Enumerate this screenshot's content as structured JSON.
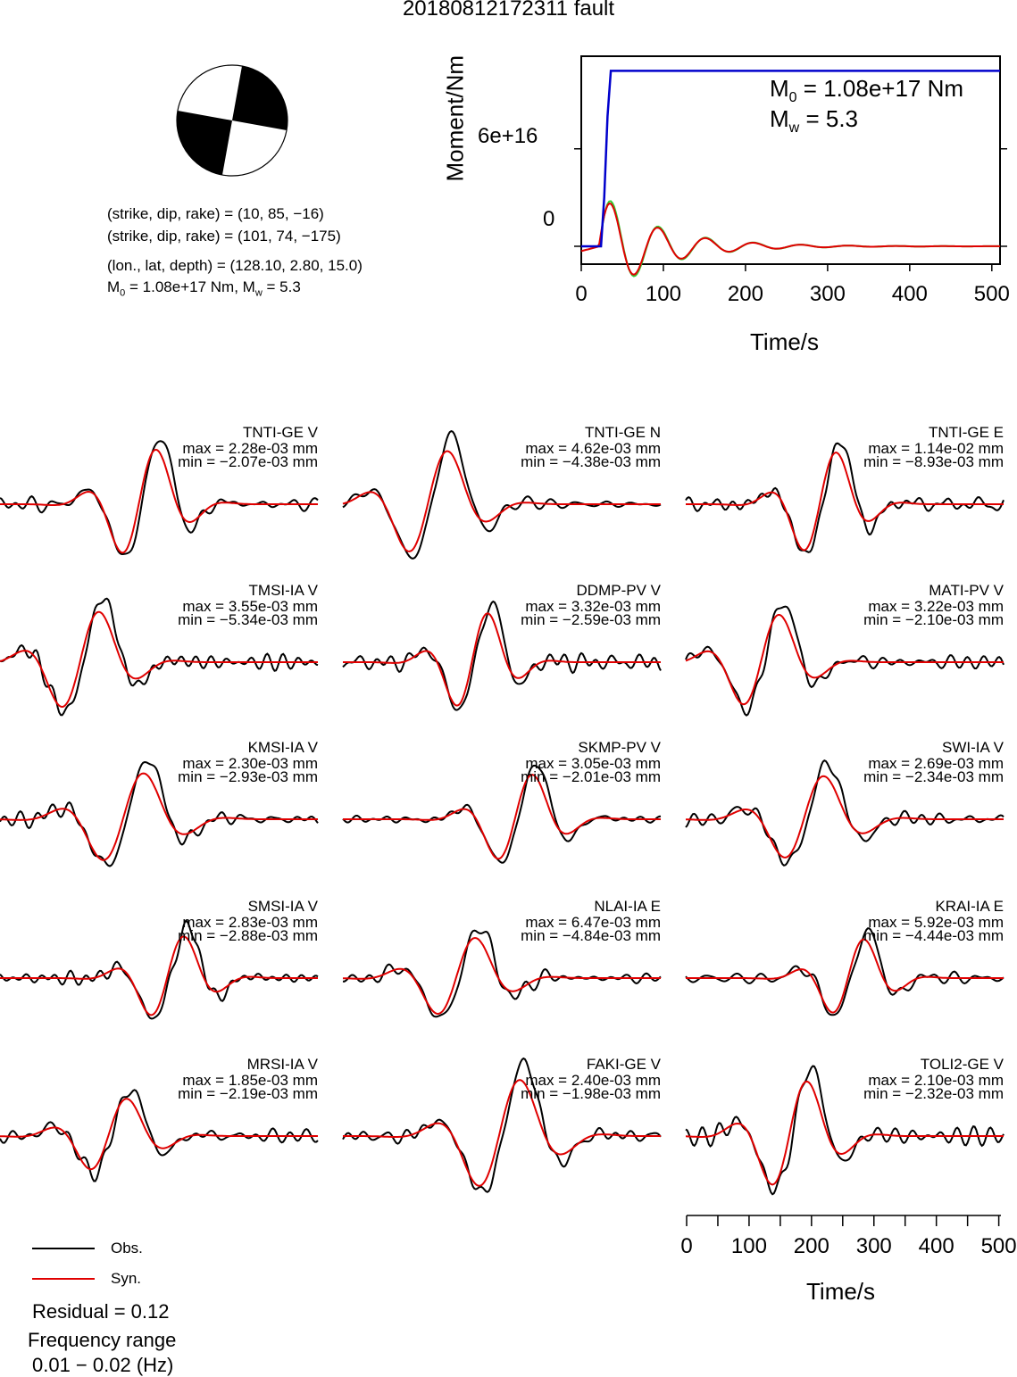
{
  "title": "20180812172311 fault",
  "params": {
    "plane1": "(strike, dip, rake) = (10, 85, −16)",
    "plane2": "(strike, dip, rake) = (101, 74, −175)",
    "location": "(lon., lat, depth) = (128.10, 2.80, 15.0)",
    "moment_prefix": "M",
    "moment_sub": "0",
    "moment_mid": " = 1.08e+17 Nm, M",
    "mw_sub": "w",
    "mw_suffix": " = 5.3"
  },
  "moment_plot": {
    "ylabel": "Moment/Nm",
    "xlabel": "Time/s",
    "m0_prefix": "M",
    "m0_sub": "0",
    "m0_value": " = 1.08e+17 Nm",
    "mw_prefix": "M",
    "mw_sub": "w",
    "mw_value": " = 5.3",
    "ytick_labels": [
      "6e+16",
      "0"
    ],
    "xtick_labels": [
      "0",
      "100",
      "200",
      "300",
      "400",
      "500"
    ]
  },
  "traces_time_axis": {
    "xlabel": "Time/s",
    "xtick_labels": [
      "0",
      "100",
      "200",
      "300",
      "400",
      "500"
    ]
  },
  "legend": {
    "obs_label": "Obs.",
    "syn_label": "Syn.",
    "obs_color": "#000000",
    "syn_color": "#e00000"
  },
  "residual": "Residual = 0.12",
  "freq_label": "Frequency range",
  "freq_value": "0.01 − 0.02 (Hz)",
  "colors": {
    "moment_function": "#0000cc",
    "obs": "#000000",
    "syn": "#e00000",
    "moment_rate_green": "#33cc33"
  },
  "chart_data": {
    "type": "line",
    "title": "20180812172311 fault",
    "moment_function": {
      "xlabel": "Time/s",
      "ylabel": "Moment/Nm",
      "xlim": [
        0,
        510
      ],
      "ylim": [
        -1.1e+16,
        1.17e+17
      ],
      "series": [
        {
          "x": [
            0,
            24,
            28,
            32,
            36,
            510
          ],
          "y": [
            0,
            0,
            3e+16,
            8e+16,
            1.08e+17,
            1.08e+17
          ]
        }
      ],
      "scalar_moment_Nm": 1.08e+17,
      "Mw": 5.3
    },
    "stations": [
      {
        "name": "TNTI-GE V",
        "max": "max = 2.28e-03 mm",
        "min": "min = −2.07e-03 mm"
      },
      {
        "name": "TNTI-GE N",
        "max": "max = 4.62e-03 mm",
        "min": "min = −4.38e-03 mm"
      },
      {
        "name": "TNTI-GE E",
        "max": "max = 1.14e-02 mm",
        "min": "min = −8.93e-03 mm"
      },
      {
        "name": "TMSI-IA V",
        "max": "max = 3.55e-03 mm",
        "min": "min = −5.34e-03 mm"
      },
      {
        "name": "DDMP-PV V",
        "max": "max = 3.32e-03 mm",
        "min": "min = −2.59e-03 mm"
      },
      {
        "name": "MATI-PV V",
        "max": "max = 3.22e-03 mm",
        "min": "min = −2.10e-03 mm"
      },
      {
        "name": "KMSI-IA V",
        "max": "max = 2.30e-03 mm",
        "min": "min = −2.93e-03 mm"
      },
      {
        "name": "SKMP-PV V",
        "max": "max = 3.05e-03 mm",
        "min": "min = −2.01e-03 mm"
      },
      {
        "name": "SWI-IA V",
        "max": "max = 2.69e-03 mm",
        "min": "min = −2.34e-03 mm"
      },
      {
        "name": "SMSI-IA V",
        "max": "max = 2.83e-03 mm",
        "min": "min = −2.88e-03 mm"
      },
      {
        "name": "NLAI-IA E",
        "max": "max = 6.47e-03 mm",
        "min": "min = −4.84e-03 mm"
      },
      {
        "name": "KRAI-IA E",
        "max": "max = 5.92e-03 mm",
        "min": "min = −4.44e-03 mm"
      },
      {
        "name": "MRSI-IA V",
        "max": "max = 1.85e-03 mm",
        "min": "min = −2.19e-03 mm"
      },
      {
        "name": "FAKI-GE V",
        "max": "max = 2.40e-03 mm",
        "min": "min = −1.98e-03 mm"
      },
      {
        "name": "TOLI2-GE V",
        "max": "max = 2.10e-03 mm",
        "min": "min = −2.32e-03 mm"
      }
    ],
    "residual": 0.12,
    "frequency_range_hz": [
      0.01,
      0.02
    ]
  }
}
